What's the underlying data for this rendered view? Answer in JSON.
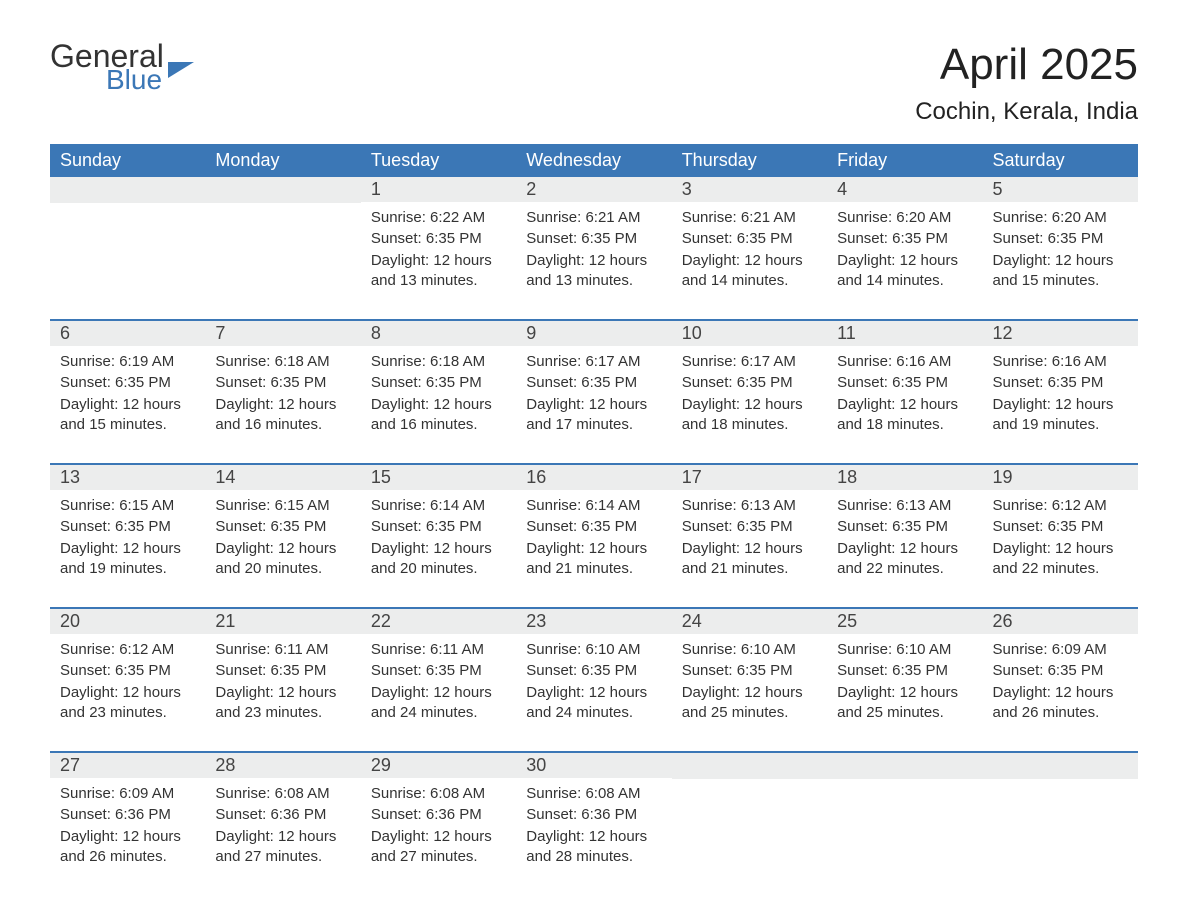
{
  "logo": {
    "line1": "General",
    "line2": "Blue"
  },
  "title": "April 2025",
  "location": "Cochin, Kerala, India",
  "colors": {
    "header_bg": "#3b77b6",
    "header_text": "#ffffff",
    "date_bar_bg": "#eceded",
    "border": "#3b77b6",
    "background": "#ffffff",
    "body_text": "#333333"
  },
  "typography": {
    "title_fontsize": 44,
    "location_fontsize": 24,
    "dayheader_fontsize": 18,
    "date_fontsize": 18,
    "info_fontsize": 15
  },
  "day_names": [
    "Sunday",
    "Monday",
    "Tuesday",
    "Wednesday",
    "Thursday",
    "Friday",
    "Saturday"
  ],
  "weeks": [
    [
      {
        "date": "",
        "sunrise": "",
        "sunset": "",
        "daylight": ""
      },
      {
        "date": "",
        "sunrise": "",
        "sunset": "",
        "daylight": ""
      },
      {
        "date": "1",
        "sunrise": "Sunrise: 6:22 AM",
        "sunset": "Sunset: 6:35 PM",
        "daylight": "Daylight: 12 hours and 13 minutes."
      },
      {
        "date": "2",
        "sunrise": "Sunrise: 6:21 AM",
        "sunset": "Sunset: 6:35 PM",
        "daylight": "Daylight: 12 hours and 13 minutes."
      },
      {
        "date": "3",
        "sunrise": "Sunrise: 6:21 AM",
        "sunset": "Sunset: 6:35 PM",
        "daylight": "Daylight: 12 hours and 14 minutes."
      },
      {
        "date": "4",
        "sunrise": "Sunrise: 6:20 AM",
        "sunset": "Sunset: 6:35 PM",
        "daylight": "Daylight: 12 hours and 14 minutes."
      },
      {
        "date": "5",
        "sunrise": "Sunrise: 6:20 AM",
        "sunset": "Sunset: 6:35 PM",
        "daylight": "Daylight: 12 hours and 15 minutes."
      }
    ],
    [
      {
        "date": "6",
        "sunrise": "Sunrise: 6:19 AM",
        "sunset": "Sunset: 6:35 PM",
        "daylight": "Daylight: 12 hours and 15 minutes."
      },
      {
        "date": "7",
        "sunrise": "Sunrise: 6:18 AM",
        "sunset": "Sunset: 6:35 PM",
        "daylight": "Daylight: 12 hours and 16 minutes."
      },
      {
        "date": "8",
        "sunrise": "Sunrise: 6:18 AM",
        "sunset": "Sunset: 6:35 PM",
        "daylight": "Daylight: 12 hours and 16 minutes."
      },
      {
        "date": "9",
        "sunrise": "Sunrise: 6:17 AM",
        "sunset": "Sunset: 6:35 PM",
        "daylight": "Daylight: 12 hours and 17 minutes."
      },
      {
        "date": "10",
        "sunrise": "Sunrise: 6:17 AM",
        "sunset": "Sunset: 6:35 PM",
        "daylight": "Daylight: 12 hours and 18 minutes."
      },
      {
        "date": "11",
        "sunrise": "Sunrise: 6:16 AM",
        "sunset": "Sunset: 6:35 PM",
        "daylight": "Daylight: 12 hours and 18 minutes."
      },
      {
        "date": "12",
        "sunrise": "Sunrise: 6:16 AM",
        "sunset": "Sunset: 6:35 PM",
        "daylight": "Daylight: 12 hours and 19 minutes."
      }
    ],
    [
      {
        "date": "13",
        "sunrise": "Sunrise: 6:15 AM",
        "sunset": "Sunset: 6:35 PM",
        "daylight": "Daylight: 12 hours and 19 minutes."
      },
      {
        "date": "14",
        "sunrise": "Sunrise: 6:15 AM",
        "sunset": "Sunset: 6:35 PM",
        "daylight": "Daylight: 12 hours and 20 minutes."
      },
      {
        "date": "15",
        "sunrise": "Sunrise: 6:14 AM",
        "sunset": "Sunset: 6:35 PM",
        "daylight": "Daylight: 12 hours and 20 minutes."
      },
      {
        "date": "16",
        "sunrise": "Sunrise: 6:14 AM",
        "sunset": "Sunset: 6:35 PM",
        "daylight": "Daylight: 12 hours and 21 minutes."
      },
      {
        "date": "17",
        "sunrise": "Sunrise: 6:13 AM",
        "sunset": "Sunset: 6:35 PM",
        "daylight": "Daylight: 12 hours and 21 minutes."
      },
      {
        "date": "18",
        "sunrise": "Sunrise: 6:13 AM",
        "sunset": "Sunset: 6:35 PM",
        "daylight": "Daylight: 12 hours and 22 minutes."
      },
      {
        "date": "19",
        "sunrise": "Sunrise: 6:12 AM",
        "sunset": "Sunset: 6:35 PM",
        "daylight": "Daylight: 12 hours and 22 minutes."
      }
    ],
    [
      {
        "date": "20",
        "sunrise": "Sunrise: 6:12 AM",
        "sunset": "Sunset: 6:35 PM",
        "daylight": "Daylight: 12 hours and 23 minutes."
      },
      {
        "date": "21",
        "sunrise": "Sunrise: 6:11 AM",
        "sunset": "Sunset: 6:35 PM",
        "daylight": "Daylight: 12 hours and 23 minutes."
      },
      {
        "date": "22",
        "sunrise": "Sunrise: 6:11 AM",
        "sunset": "Sunset: 6:35 PM",
        "daylight": "Daylight: 12 hours and 24 minutes."
      },
      {
        "date": "23",
        "sunrise": "Sunrise: 6:10 AM",
        "sunset": "Sunset: 6:35 PM",
        "daylight": "Daylight: 12 hours and 24 minutes."
      },
      {
        "date": "24",
        "sunrise": "Sunrise: 6:10 AM",
        "sunset": "Sunset: 6:35 PM",
        "daylight": "Daylight: 12 hours and 25 minutes."
      },
      {
        "date": "25",
        "sunrise": "Sunrise: 6:10 AM",
        "sunset": "Sunset: 6:35 PM",
        "daylight": "Daylight: 12 hours and 25 minutes."
      },
      {
        "date": "26",
        "sunrise": "Sunrise: 6:09 AM",
        "sunset": "Sunset: 6:35 PM",
        "daylight": "Daylight: 12 hours and 26 minutes."
      }
    ],
    [
      {
        "date": "27",
        "sunrise": "Sunrise: 6:09 AM",
        "sunset": "Sunset: 6:36 PM",
        "daylight": "Daylight: 12 hours and 26 minutes."
      },
      {
        "date": "28",
        "sunrise": "Sunrise: 6:08 AM",
        "sunset": "Sunset: 6:36 PM",
        "daylight": "Daylight: 12 hours and 27 minutes."
      },
      {
        "date": "29",
        "sunrise": "Sunrise: 6:08 AM",
        "sunset": "Sunset: 6:36 PM",
        "daylight": "Daylight: 12 hours and 27 minutes."
      },
      {
        "date": "30",
        "sunrise": "Sunrise: 6:08 AM",
        "sunset": "Sunset: 6:36 PM",
        "daylight": "Daylight: 12 hours and 28 minutes."
      },
      {
        "date": "",
        "sunrise": "",
        "sunset": "",
        "daylight": ""
      },
      {
        "date": "",
        "sunrise": "",
        "sunset": "",
        "daylight": ""
      },
      {
        "date": "",
        "sunrise": "",
        "sunset": "",
        "daylight": ""
      }
    ]
  ]
}
